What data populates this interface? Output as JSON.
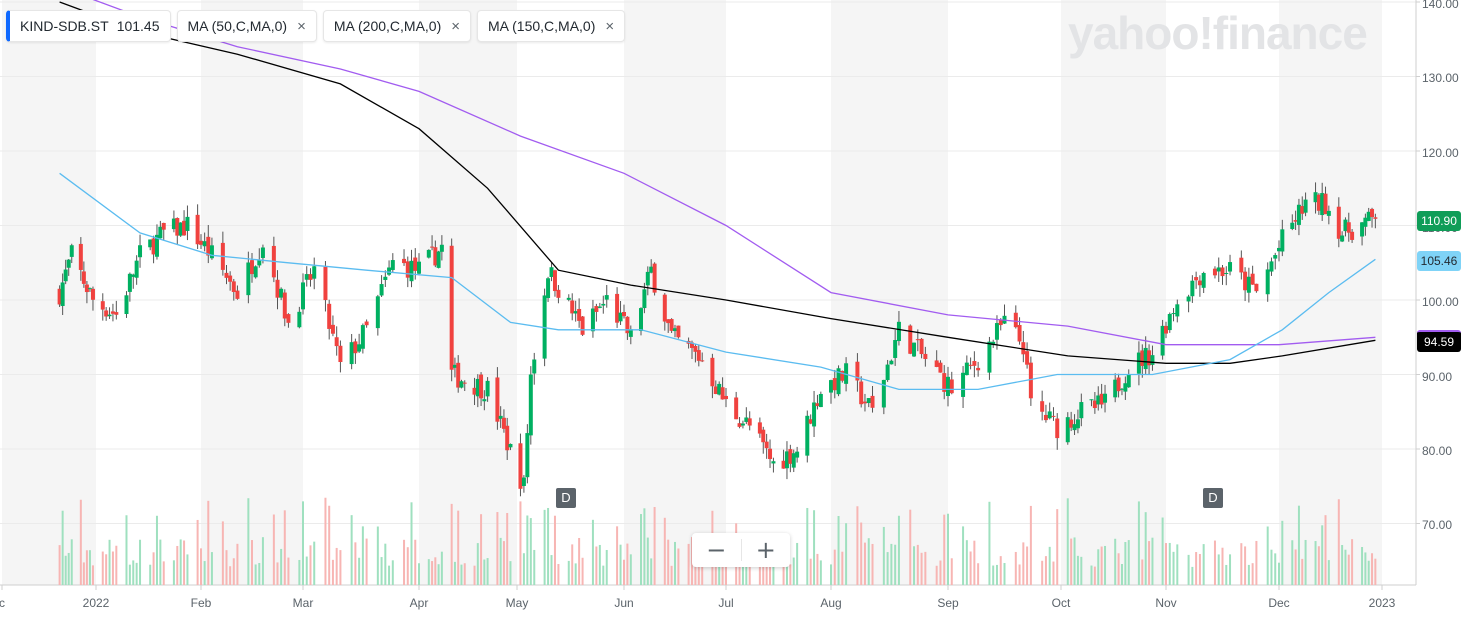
{
  "header": {
    "symbol": "KIND-SDB.ST",
    "price": "101.45",
    "indicators": [
      {
        "label": "MA (50,C,MA,0)",
        "close": "×"
      },
      {
        "label": "MA (200,C,MA,0)",
        "close": "×"
      },
      {
        "label": "MA (150,C,MA,0)",
        "close": "×"
      }
    ]
  },
  "watermark": "yahoo!finance",
  "zoom": {
    "minus": "−",
    "plus": "+"
  },
  "dividend_markers": [
    {
      "label": "D",
      "month": "May"
    },
    {
      "label": "D",
      "month": "Nov"
    }
  ],
  "price_tags": [
    {
      "value": "110.90",
      "bg": "#0f9d58",
      "fg": "#ffffff"
    },
    {
      "value": "105.46",
      "bg": "#7fd3f7",
      "fg": "#232a31"
    },
    {
      "value": "94.59",
      "bg": "#000000",
      "fg": "#ffffff"
    }
  ],
  "chart_data": {
    "type": "candlestick",
    "y_ticks": [
      "140.00",
      "130.00",
      "120.00",
      "110.00",
      "100.00",
      "90.00",
      "80.00",
      "70.00"
    ],
    "ylim": [
      64,
      141
    ],
    "x_labels": [
      "c",
      "2022",
      "Feb",
      "Mar",
      "Apr",
      "May",
      "Jun",
      "Jul",
      "Aug",
      "Sep",
      "Oct",
      "Nov",
      "Dec",
      "2023"
    ],
    "colors": {
      "up": "#00b061",
      "down": "#f0423f",
      "ma50": "#5bbcf0",
      "ma200": "#000000",
      "ma150": "#a25cf0"
    },
    "close_path": [
      [
        "2021-12-20",
        101
      ],
      [
        "2021-12-24",
        106
      ],
      [
        "2021-12-31",
        100
      ],
      [
        "2022-01-07",
        98
      ],
      [
        "2022-01-14",
        106
      ],
      [
        "2022-01-21",
        109
      ],
      [
        "2022-01-28",
        110
      ],
      [
        "2022-02-04",
        106
      ],
      [
        "2022-02-11",
        101
      ],
      [
        "2022-02-18",
        108
      ],
      [
        "2022-02-25",
        97
      ],
      [
        "2022-03-04",
        104
      ],
      [
        "2022-03-11",
        91
      ],
      [
        "2022-03-18",
        96
      ],
      [
        "2022-03-25",
        105
      ],
      [
        "2022-04-01",
        104
      ],
      [
        "2022-04-08",
        107
      ],
      [
        "2022-04-11",
        90
      ],
      [
        "2022-04-22",
        88
      ],
      [
        "2022-05-03",
        75
      ],
      [
        "2022-05-05",
        90
      ],
      [
        "2022-05-10",
        104
      ],
      [
        "2022-05-20",
        96
      ],
      [
        "2022-05-27",
        100
      ],
      [
        "2022-06-03",
        95
      ],
      [
        "2022-06-09",
        104
      ],
      [
        "2022-06-15",
        95
      ],
      [
        "2022-06-24",
        92
      ],
      [
        "2022-07-01",
        86
      ],
      [
        "2022-07-08",
        83
      ],
      [
        "2022-07-15",
        78
      ],
      [
        "2022-07-22",
        80
      ],
      [
        "2022-07-29",
        88
      ],
      [
        "2022-08-05",
        90
      ],
      [
        "2022-08-12",
        85
      ],
      [
        "2022-08-19",
        96
      ],
      [
        "2022-08-26",
        92
      ],
      [
        "2022-09-02",
        88
      ],
      [
        "2022-09-09",
        92
      ],
      [
        "2022-09-16",
        97
      ],
      [
        "2022-09-21",
        94
      ],
      [
        "2022-09-23",
        86
      ],
      [
        "2022-09-30",
        83
      ],
      [
        "2022-10-07",
        85
      ],
      [
        "2022-10-14",
        86
      ],
      [
        "2022-10-21",
        91
      ],
      [
        "2022-10-28",
        93
      ],
      [
        "2022-11-04",
        100
      ],
      [
        "2022-11-11",
        104
      ],
      [
        "2022-11-18",
        104
      ],
      [
        "2022-11-25",
        101
      ],
      [
        "2022-12-02",
        108
      ],
      [
        "2022-12-09",
        113
      ],
      [
        "2022-12-15",
        113
      ],
      [
        "2022-12-20",
        109
      ],
      [
        "2022-12-30",
        110.9
      ]
    ],
    "ma50": [
      [
        "2021-12-20",
        117
      ],
      [
        "2022-01-14",
        109
      ],
      [
        "2022-02-04",
        106
      ],
      [
        "2022-02-25",
        105
      ],
      [
        "2022-03-18",
        104
      ],
      [
        "2022-04-11",
        103
      ],
      [
        "2022-04-29",
        97
      ],
      [
        "2022-05-13",
        96
      ],
      [
        "2022-06-06",
        96
      ],
      [
        "2022-07-01",
        93
      ],
      [
        "2022-07-29",
        91
      ],
      [
        "2022-08-19",
        88
      ],
      [
        "2022-09-09",
        88
      ],
      [
        "2022-09-30",
        90
      ],
      [
        "2022-10-28",
        90
      ],
      [
        "2022-11-18",
        92
      ],
      [
        "2022-12-02",
        96
      ],
      [
        "2022-12-16",
        101
      ],
      [
        "2022-12-30",
        105.46
      ]
    ],
    "ma200": [
      [
        "2021-12-20",
        140
      ],
      [
        "2022-01-14",
        136
      ],
      [
        "2022-02-11",
        133
      ],
      [
        "2022-03-11",
        129
      ],
      [
        "2022-04-01",
        123
      ],
      [
        "2022-04-22",
        115
      ],
      [
        "2022-05-13",
        104
      ],
      [
        "2022-06-03",
        102
      ],
      [
        "2022-07-01",
        100
      ],
      [
        "2022-08-01",
        97.5
      ],
      [
        "2022-09-01",
        95
      ],
      [
        "2022-10-03",
        92.5
      ],
      [
        "2022-11-01",
        91.5
      ],
      [
        "2022-11-18",
        91.5
      ],
      [
        "2022-12-02",
        92.5
      ],
      [
        "2022-12-30",
        94.59
      ]
    ],
    "ma150": [
      [
        "2021-12-20",
        142
      ],
      [
        "2022-01-14",
        138
      ],
      [
        "2022-02-11",
        134
      ],
      [
        "2022-03-11",
        131
      ],
      [
        "2022-04-01",
        128
      ],
      [
        "2022-05-02",
        122
      ],
      [
        "2022-06-01",
        117
      ],
      [
        "2022-07-01",
        110
      ],
      [
        "2022-08-01",
        101
      ],
      [
        "2022-09-01",
        98
      ],
      [
        "2022-10-03",
        96.5
      ],
      [
        "2022-11-01",
        94
      ],
      [
        "2022-12-01",
        94
      ],
      [
        "2022-12-30",
        95
      ]
    ]
  }
}
